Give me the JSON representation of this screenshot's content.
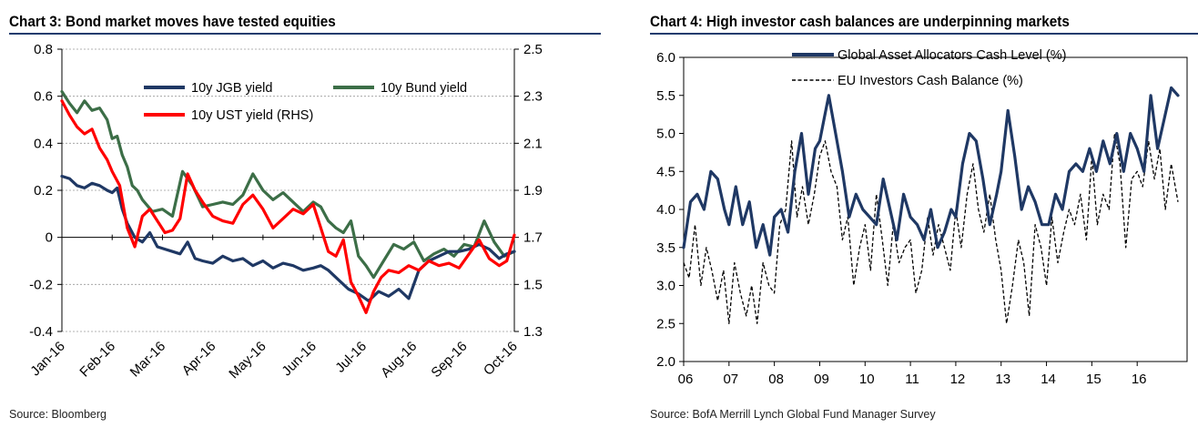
{
  "charts": [
    {
      "title": "Chart 3: Bond market moves have tested equities",
      "source": "Source: Bloomberg"
    },
    {
      "title": "Chart 4: High investor cash balances are underpinning markets",
      "source": "Source: BofA Merrill Lynch Global Fund Manager Survey"
    }
  ],
  "chart_data": [
    {
      "type": "line",
      "title": "Chart 3: Bond market moves have tested equities",
      "x_ticks": [
        "Jan-16",
        "Feb-16",
        "Mar-16",
        "Apr-16",
        "May-16",
        "Jun-16",
        "Jul-16",
        "Aug-16",
        "Sep-16",
        "Oct-16"
      ],
      "x_range": [
        0,
        9
      ],
      "y_left": {
        "range": [
          -0.4,
          0.8
        ],
        "ticks": [
          "0.8",
          "0.6",
          "0.4",
          "0.2",
          "0",
          "-0.2",
          "-0.4"
        ],
        "tick_values": [
          0.8,
          0.6,
          0.4,
          0.2,
          0,
          -0.2,
          -0.4
        ]
      },
      "y_right": {
        "range": [
          1.3,
          2.5
        ],
        "ticks": [
          "2.5",
          "2.3",
          "2.1",
          "1.9",
          "1.7",
          "1.5",
          "1.3"
        ],
        "tick_values": [
          2.5,
          2.3,
          2.1,
          1.9,
          1.7,
          1.5,
          1.3
        ]
      },
      "series": [
        {
          "name": "10y JGB yield",
          "axis": "left",
          "color": "#1f3864",
          "x": [
            0,
            0.15,
            0.3,
            0.45,
            0.6,
            0.75,
            0.9,
            1.0,
            1.1,
            1.2,
            1.3,
            1.45,
            1.6,
            1.75,
            1.9,
            2.05,
            2.2,
            2.35,
            2.5,
            2.65,
            2.8,
            3.0,
            3.2,
            3.4,
            3.6,
            3.8,
            4.0,
            4.2,
            4.4,
            4.6,
            4.8,
            5.0,
            5.15,
            5.3,
            5.5,
            5.7,
            5.9,
            6.1,
            6.3,
            6.5,
            6.7,
            6.9,
            7.1,
            7.3,
            7.5,
            7.7,
            7.9,
            8.1,
            8.3,
            8.5,
            8.7,
            8.85,
            9.0
          ],
          "y": [
            0.26,
            0.25,
            0.22,
            0.21,
            0.23,
            0.22,
            0.2,
            0.19,
            0.21,
            0.12,
            0.06,
            0.0,
            -0.02,
            0.02,
            -0.04,
            -0.05,
            -0.06,
            -0.07,
            -0.02,
            -0.09,
            -0.1,
            -0.11,
            -0.08,
            -0.1,
            -0.09,
            -0.12,
            -0.1,
            -0.13,
            -0.11,
            -0.12,
            -0.14,
            -0.13,
            -0.12,
            -0.14,
            -0.18,
            -0.22,
            -0.24,
            -0.27,
            -0.23,
            -0.25,
            -0.22,
            -0.26,
            -0.14,
            -0.1,
            -0.08,
            -0.06,
            -0.06,
            -0.05,
            -0.03,
            -0.05,
            -0.09,
            -0.07,
            -0.06
          ]
        },
        {
          "name": "10y Bund yield",
          "axis": "left",
          "color": "#3c6e47",
          "x": [
            0,
            0.15,
            0.3,
            0.45,
            0.6,
            0.75,
            0.9,
            1.0,
            1.1,
            1.2,
            1.3,
            1.4,
            1.5,
            1.6,
            1.8,
            2.0,
            2.2,
            2.4,
            2.6,
            2.8,
            3.0,
            3.2,
            3.4,
            3.6,
            3.8,
            4.0,
            4.2,
            4.4,
            4.6,
            4.8,
            5.0,
            5.15,
            5.3,
            5.45,
            5.6,
            5.75,
            5.9,
            6.05,
            6.2,
            6.4,
            6.6,
            6.8,
            7.0,
            7.2,
            7.4,
            7.6,
            7.8,
            8.0,
            8.2,
            8.4,
            8.6,
            8.8,
            9.0
          ],
          "y": [
            0.62,
            0.57,
            0.53,
            0.58,
            0.54,
            0.55,
            0.5,
            0.42,
            0.43,
            0.35,
            0.3,
            0.22,
            0.2,
            0.16,
            0.11,
            0.12,
            0.09,
            0.28,
            0.22,
            0.13,
            0.14,
            0.15,
            0.14,
            0.18,
            0.27,
            0.2,
            0.16,
            0.19,
            0.15,
            0.11,
            0.15,
            0.13,
            0.07,
            0.04,
            0.02,
            0.07,
            -0.08,
            -0.12,
            -0.17,
            -0.1,
            -0.03,
            -0.05,
            -0.02,
            -0.1,
            -0.07,
            -0.05,
            -0.08,
            -0.03,
            -0.04,
            0.07,
            -0.02,
            -0.08,
            -0.06
          ]
        },
        {
          "name": "10y UST yield (RHS)",
          "axis": "right",
          "color": "#ff0000",
          "x": [
            0,
            0.15,
            0.3,
            0.45,
            0.6,
            0.75,
            0.9,
            1.0,
            1.15,
            1.3,
            1.45,
            1.6,
            1.75,
            1.9,
            2.05,
            2.2,
            2.35,
            2.5,
            2.65,
            2.8,
            3.0,
            3.2,
            3.4,
            3.6,
            3.8,
            4.0,
            4.2,
            4.4,
            4.6,
            4.8,
            5.0,
            5.15,
            5.3,
            5.45,
            5.6,
            5.75,
            5.9,
            6.05,
            6.2,
            6.35,
            6.5,
            6.7,
            6.9,
            7.1,
            7.3,
            7.5,
            7.7,
            7.9,
            8.1,
            8.3,
            8.5,
            8.7,
            8.85,
            9.0
          ],
          "y": [
            2.28,
            2.22,
            2.17,
            2.14,
            2.16,
            2.08,
            2.03,
            1.98,
            1.92,
            1.74,
            1.66,
            1.79,
            1.82,
            1.77,
            1.72,
            1.73,
            1.78,
            1.97,
            1.9,
            1.85,
            1.79,
            1.77,
            1.76,
            1.84,
            1.88,
            1.82,
            1.74,
            1.78,
            1.82,
            1.8,
            1.84,
            1.74,
            1.64,
            1.62,
            1.69,
            1.51,
            1.45,
            1.38,
            1.47,
            1.53,
            1.56,
            1.55,
            1.58,
            1.56,
            1.6,
            1.58,
            1.59,
            1.57,
            1.63,
            1.69,
            1.61,
            1.58,
            1.6,
            1.71
          ]
        }
      ]
    },
    {
      "type": "line",
      "title": "Chart 4: High investor cash balances are underpinning markets",
      "x_ticks": [
        "06",
        "07",
        "08",
        "09",
        "10",
        "11",
        "12",
        "13",
        "14",
        "15",
        "16"
      ],
      "x_range": [
        2006,
        2017.1
      ],
      "y": {
        "range": [
          2.0,
          6.0
        ],
        "ticks": [
          "6.0",
          "5.5",
          "5.0",
          "4.5",
          "4.0",
          "3.5",
          "3.0",
          "2.5",
          "2.0"
        ],
        "tick_values": [
          6.0,
          5.5,
          5.0,
          4.5,
          4.0,
          3.5,
          3.0,
          2.5,
          2.0
        ]
      },
      "series": [
        {
          "name": "Global Asset Allocators Cash Level (%)",
          "style": "solid",
          "color": "#1f3864",
          "x": [
            2006.0,
            2006.15,
            2006.3,
            2006.45,
            2006.6,
            2006.75,
            2006.9,
            2007.0,
            2007.15,
            2007.3,
            2007.45,
            2007.6,
            2007.75,
            2007.9,
            2008.0,
            2008.15,
            2008.3,
            2008.45,
            2008.6,
            2008.75,
            2008.9,
            2009.0,
            2009.1,
            2009.2,
            2009.35,
            2009.5,
            2009.65,
            2009.8,
            2009.95,
            2010.1,
            2010.25,
            2010.4,
            2010.55,
            2010.7,
            2010.85,
            2011.0,
            2011.15,
            2011.3,
            2011.45,
            2011.6,
            2011.75,
            2011.9,
            2012.0,
            2012.15,
            2012.3,
            2012.45,
            2012.6,
            2012.75,
            2012.9,
            2013.0,
            2013.15,
            2013.3,
            2013.45,
            2013.6,
            2013.75,
            2013.9,
            2014.05,
            2014.2,
            2014.35,
            2014.5,
            2014.65,
            2014.8,
            2014.95,
            2015.1,
            2015.25,
            2015.4,
            2015.55,
            2015.7,
            2015.85,
            2016.0,
            2016.15,
            2016.3,
            2016.45,
            2016.6,
            2016.75,
            2016.9
          ],
          "y": [
            3.5,
            4.1,
            4.2,
            4.0,
            4.5,
            4.4,
            4.0,
            3.8,
            4.3,
            3.8,
            4.1,
            3.5,
            3.8,
            3.4,
            3.9,
            4.0,
            3.7,
            4.5,
            5.0,
            4.2,
            4.8,
            4.9,
            5.2,
            5.5,
            5.0,
            4.5,
            3.9,
            4.2,
            4.0,
            3.9,
            3.8,
            4.4,
            4.0,
            3.6,
            4.2,
            3.9,
            3.8,
            3.6,
            4.0,
            3.5,
            3.7,
            4.0,
            3.9,
            4.6,
            5.0,
            4.9,
            4.4,
            3.8,
            4.2,
            4.5,
            5.3,
            4.7,
            4.0,
            4.3,
            4.1,
            3.8,
            3.8,
            4.2,
            4.0,
            4.5,
            4.6,
            4.5,
            4.8,
            4.5,
            4.9,
            4.6,
            5.0,
            4.5,
            5.0,
            4.8,
            4.5,
            5.5,
            4.8,
            5.2,
            5.6,
            5.5
          ]
        },
        {
          "name": "EU Investors Cash Balance (%)",
          "style": "dashed",
          "color": "#000000",
          "x": [
            2006.0,
            2006.12,
            2006.25,
            2006.38,
            2006.5,
            2006.62,
            2006.75,
            2006.88,
            2007.0,
            2007.12,
            2007.25,
            2007.38,
            2007.5,
            2007.62,
            2007.75,
            2007.88,
            2008.0,
            2008.12,
            2008.25,
            2008.38,
            2008.5,
            2008.62,
            2008.75,
            2008.88,
            2009.0,
            2009.12,
            2009.25,
            2009.38,
            2009.5,
            2009.62,
            2009.75,
            2009.88,
            2010.0,
            2010.12,
            2010.25,
            2010.38,
            2010.5,
            2010.62,
            2010.75,
            2010.88,
            2011.0,
            2011.12,
            2011.25,
            2011.38,
            2011.5,
            2011.62,
            2011.75,
            2011.88,
            2012.0,
            2012.12,
            2012.25,
            2012.38,
            2012.5,
            2012.62,
            2012.75,
            2012.88,
            2013.0,
            2013.12,
            2013.25,
            2013.38,
            2013.5,
            2013.62,
            2013.75,
            2013.88,
            2014.0,
            2014.12,
            2014.25,
            2014.38,
            2014.5,
            2014.62,
            2014.75,
            2014.88,
            2015.0,
            2015.12,
            2015.25,
            2015.38,
            2015.5,
            2015.62,
            2015.75,
            2015.88,
            2016.0,
            2016.12,
            2016.25,
            2016.38,
            2016.5,
            2016.62,
            2016.75,
            2016.9
          ],
          "y": [
            3.3,
            3.1,
            3.8,
            3.0,
            3.5,
            3.2,
            2.8,
            3.2,
            2.5,
            3.3,
            2.9,
            2.6,
            3.0,
            2.5,
            3.3,
            3.0,
            2.9,
            3.8,
            4.0,
            4.9,
            3.9,
            4.3,
            3.8,
            4.2,
            4.7,
            4.9,
            4.5,
            4.3,
            3.6,
            3.9,
            3.0,
            3.5,
            3.8,
            3.2,
            4.2,
            3.6,
            3.0,
            3.8,
            3.3,
            3.5,
            3.6,
            2.9,
            3.2,
            3.9,
            3.4,
            3.8,
            3.5,
            3.2,
            4.0,
            3.5,
            4.2,
            4.6,
            4.0,
            3.7,
            4.2,
            3.6,
            3.2,
            2.5,
            3.0,
            3.6,
            3.3,
            2.6,
            3.8,
            3.5,
            3.0,
            3.9,
            3.3,
            3.7,
            4.0,
            3.8,
            4.2,
            3.6,
            4.7,
            3.8,
            4.2,
            4.0,
            5.0,
            4.6,
            3.5,
            4.4,
            4.5,
            4.3,
            4.9,
            4.4,
            4.8,
            4.0,
            4.6,
            4.1
          ]
        }
      ]
    }
  ]
}
